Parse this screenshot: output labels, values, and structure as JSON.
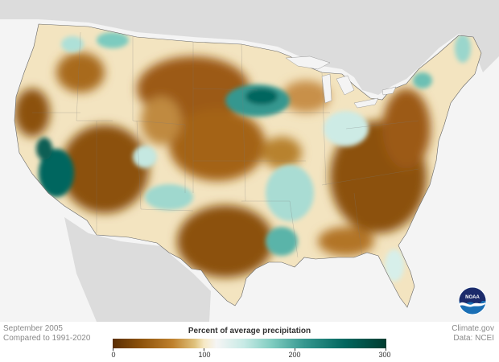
{
  "caption": {
    "date": "September 2005",
    "baseline": "Compared to 1991-2020"
  },
  "credit": {
    "site": "Climate.gov",
    "source": "Data: NCEI"
  },
  "legend": {
    "title": "Percent of average precipitation",
    "ticks": [
      "0",
      "100",
      "200",
      "300"
    ]
  },
  "logo": {
    "text": "NOAA"
  },
  "colors": {
    "very_dry": "#8c510a",
    "dry": "#bf812d",
    "near_average": "#f6e8c3",
    "wet": "#80cdc1",
    "very_wet": "#01665e",
    "land_outside": "#dcdcdc",
    "water": "#f4f4f4",
    "noaa_blue": "#1a6fb5"
  }
}
